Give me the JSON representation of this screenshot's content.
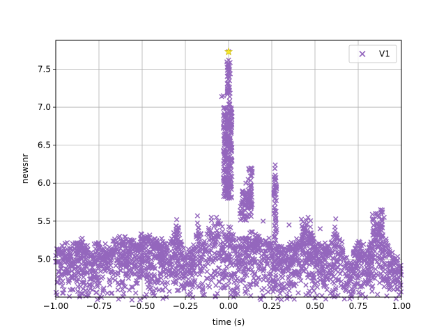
{
  "chart_data": {
    "type": "scatter",
    "marker": "x",
    "xlabel": "time (s)",
    "ylabel": "newsnr",
    "xlim": [
      -1.0,
      1.0
    ],
    "ylim": [
      4.5,
      7.88
    ],
    "xticks": [
      -1.0,
      -0.75,
      -0.5,
      -0.25,
      0.0,
      0.25,
      0.5,
      0.75,
      1.0
    ],
    "xtick_labels": [
      "−1.00",
      "−0.75",
      "−0.50",
      "−0.25",
      "0.00",
      "0.25",
      "0.50",
      "0.75",
      "1.00"
    ],
    "yticks": [
      5.0,
      5.5,
      6.0,
      6.5,
      7.0,
      7.5
    ],
    "ytick_labels": [
      "5.0",
      "5.5",
      "6.0",
      "6.5",
      "7.0",
      "7.5"
    ],
    "grid": true,
    "legend_position": "top-right",
    "series": [
      {
        "name": "V1",
        "color": "#9467bd",
        "envelope": [
          [
            -1.0,
            5.18
          ],
          [
            -0.95,
            5.25
          ],
          [
            -0.9,
            5.22
          ],
          [
            -0.85,
            5.3
          ],
          [
            -0.8,
            5.15
          ],
          [
            -0.75,
            5.3
          ],
          [
            -0.7,
            5.2
          ],
          [
            -0.65,
            5.35
          ],
          [
            -0.6,
            5.35
          ],
          [
            -0.55,
            5.28
          ],
          [
            -0.5,
            5.38
          ],
          [
            -0.45,
            5.4
          ],
          [
            -0.4,
            5.3
          ],
          [
            -0.35,
            5.25
          ],
          [
            -0.3,
            5.5
          ],
          [
            -0.25,
            5.2
          ],
          [
            -0.2,
            5.25
          ],
          [
            -0.18,
            5.55
          ],
          [
            -0.15,
            5.3
          ],
          [
            -0.1,
            5.55
          ],
          [
            -0.07,
            5.5
          ],
          [
            -0.05,
            5.6
          ],
          [
            -0.03,
            5.4
          ],
          [
            0.0,
            5.5
          ],
          [
            0.05,
            5.3
          ],
          [
            0.1,
            5.35
          ],
          [
            0.15,
            5.4
          ],
          [
            0.2,
            5.3
          ],
          [
            0.25,
            5.3
          ],
          [
            0.3,
            5.2
          ],
          [
            0.35,
            5.25
          ],
          [
            0.4,
            5.3
          ],
          [
            0.43,
            5.45
          ],
          [
            0.45,
            5.55
          ],
          [
            0.5,
            5.3
          ],
          [
            0.55,
            5.2
          ],
          [
            0.6,
            5.35
          ],
          [
            0.62,
            5.5
          ],
          [
            0.65,
            5.3
          ],
          [
            0.7,
            4.95
          ],
          [
            0.75,
            5.3
          ],
          [
            0.8,
            5.25
          ],
          [
            0.85,
            5.4
          ],
          [
            0.87,
            5.62
          ],
          [
            0.9,
            5.4
          ],
          [
            0.95,
            5.1
          ],
          [
            1.0,
            5.05
          ]
        ],
        "clusters": [
          {
            "x": -0.005,
            "spread": 0.025,
            "ymin": 5.8,
            "ymax": 7.0,
            "n": 260
          },
          {
            "x": 0.0,
            "spread": 0.01,
            "ymin": 7.0,
            "ymax": 7.6,
            "n": 40
          },
          {
            "x": 0.1,
            "spread": 0.035,
            "ymin": 5.5,
            "ymax": 5.9,
            "n": 70
          },
          {
            "x": 0.125,
            "spread": 0.012,
            "ymin": 5.7,
            "ymax": 6.2,
            "n": 30
          },
          {
            "x": 0.27,
            "spread": 0.008,
            "ymin": 5.2,
            "ymax": 6.25,
            "n": 50
          },
          {
            "x": 0.45,
            "spread": 0.03,
            "ymin": 5.2,
            "ymax": 5.55,
            "n": 25
          },
          {
            "x": 0.86,
            "spread": 0.03,
            "ymin": 5.3,
            "ymax": 5.65,
            "n": 30
          },
          {
            "x": -0.3,
            "spread": 0.01,
            "ymin": 5.2,
            "ymax": 5.5,
            "n": 10
          }
        ],
        "points": [
          [
            0.0,
            7.73
          ],
          [
            0.0,
            7.62
          ],
          [
            0.003,
            7.52
          ],
          [
            -0.003,
            7.45
          ],
          [
            -0.04,
            7.14
          ],
          [
            -0.03,
            7.15
          ],
          [
            0.12,
            6.18
          ],
          [
            0.13,
            6.2
          ],
          [
            0.27,
            6.24
          ],
          [
            0.265,
            6.05
          ],
          [
            0.275,
            5.95
          ],
          [
            0.1,
            6.0
          ],
          [
            0.2,
            5.5
          ],
          [
            0.35,
            5.45
          ],
          [
            0.53,
            5.4
          ],
          [
            0.62,
            5.53
          ],
          [
            0.85,
            5.6
          ],
          [
            0.88,
            5.65
          ],
          [
            0.9,
            5.55
          ],
          [
            -0.07,
            5.55
          ],
          [
            -0.1,
            5.55
          ],
          [
            -0.18,
            5.57
          ],
          [
            -0.3,
            5.52
          ],
          [
            0.43,
            5.49
          ],
          [
            0.46,
            5.55
          ]
        ]
      }
    ],
    "highlight": {
      "x": 0.0,
      "y": 7.73,
      "color": "#f5e62b",
      "marker": "star"
    }
  }
}
